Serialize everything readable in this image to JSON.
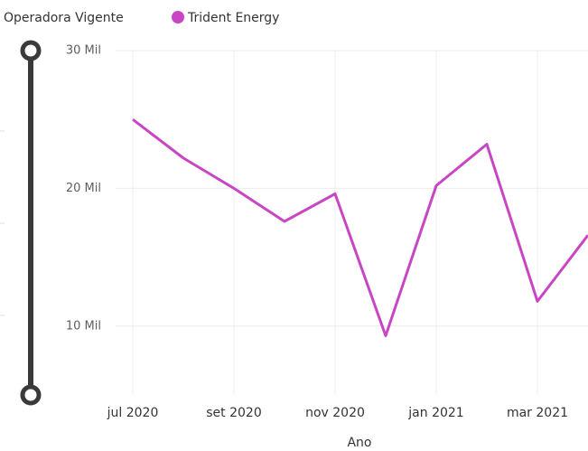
{
  "chart_data": {
    "type": "line",
    "legend_title": "Operadora Vigente",
    "x_label": "Ano",
    "categories": [
      "jul 2020",
      null,
      "set 2020",
      null,
      "nov 2020",
      null,
      "jan 2021",
      null,
      "mar 2021",
      null
    ],
    "series": [
      {
        "name": "Trident Energy",
        "color": "#c846c4",
        "values": [
          25000,
          22200,
          20000,
          17600,
          19600,
          9300,
          20200,
          23200,
          11800,
          16600
        ]
      }
    ],
    "ylim": [
      5000,
      30000
    ],
    "yticks": [
      {
        "value": 10000,
        "label": "10 Mil"
      },
      {
        "value": 20000,
        "label": "20 Mil"
      },
      {
        "value": 30000,
        "label": "30 Mil"
      }
    ],
    "grid": true,
    "legend": "top-left"
  }
}
